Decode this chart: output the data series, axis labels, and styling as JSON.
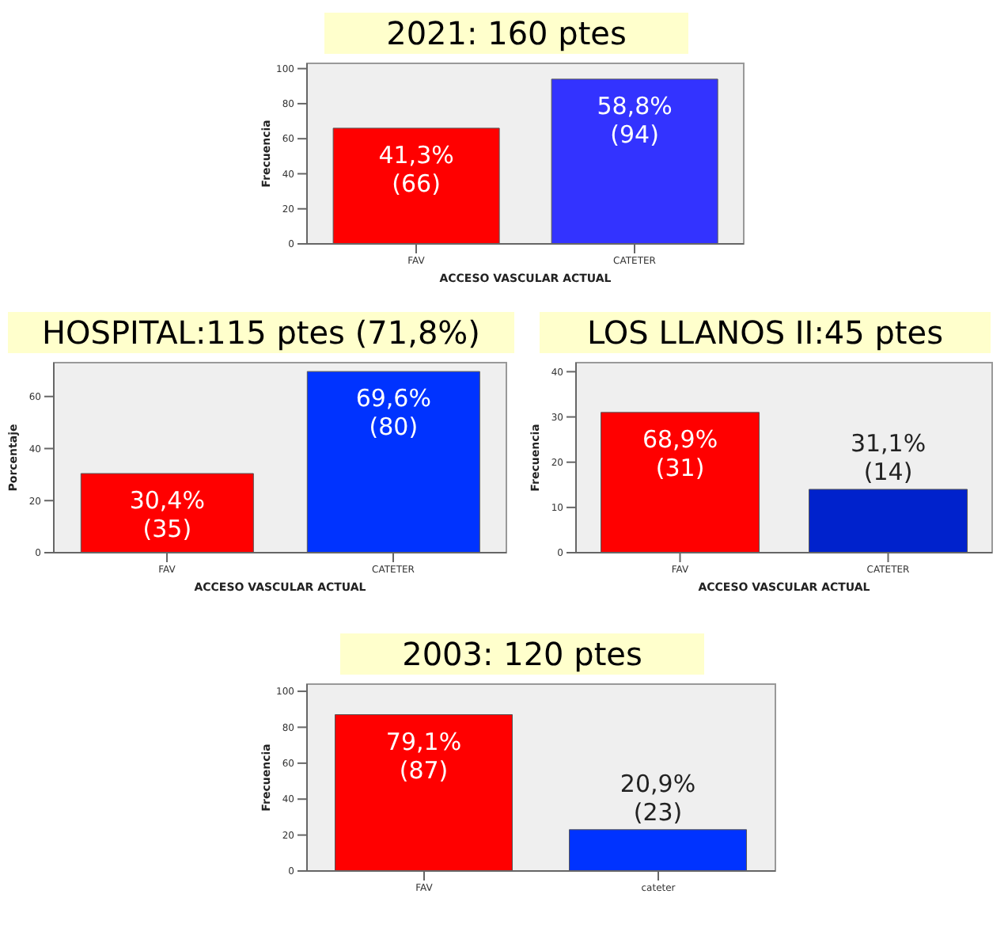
{
  "chart_data": [
    {
      "type": "bar",
      "title": "2021: 160 ptes",
      "xlabel": "ACCESO VASCULAR ACTUAL",
      "ylabel": "Frecuencia",
      "categories": [
        "FAV",
        "CATETER"
      ],
      "values": [
        66,
        94
      ],
      "colors": [
        "#ff0000",
        "#3333ff"
      ],
      "value_labels": [
        "41,3% (66)",
        "58,8% (94)"
      ],
      "ylim": [
        0,
        103
      ],
      "yticks": [
        0,
        20,
        40,
        60,
        80,
        100
      ]
    },
    {
      "type": "bar",
      "title": "HOSPITAL:115 ptes (71,8%)",
      "xlabel": "ACCESO VASCULAR ACTUAL",
      "ylabel": "Porcentaje",
      "categories": [
        "FAV",
        "CATETER"
      ],
      "values": [
        30.4,
        69.6
      ],
      "colors": [
        "#ff0000",
        "#0033ff"
      ],
      "value_labels": [
        "30,4% (35)",
        "69,6% (80)"
      ],
      "ylim": [
        0,
        73
      ],
      "yticks": [
        0,
        20,
        40,
        60
      ]
    },
    {
      "type": "bar",
      "title": "LOS LLANOS II:45 ptes",
      "xlabel": "ACCESO VASCULAR ACTUAL",
      "ylabel": "Frecuencia",
      "categories": [
        "FAV",
        "CATETER"
      ],
      "values": [
        31,
        14
      ],
      "colors": [
        "#ff0000",
        "#0022cc"
      ],
      "value_labels": [
        "68,9% (31)",
        "31,1% (14)"
      ],
      "ylim": [
        0,
        42
      ],
      "yticks": [
        0,
        10,
        20,
        30,
        40
      ]
    },
    {
      "type": "bar",
      "title": "2003: 120 ptes",
      "ylabel": "Frecuencia",
      "categories": [
        "FAV",
        "cateter"
      ],
      "values": [
        87,
        23
      ],
      "colors": [
        "#ff0000",
        "#0033ff"
      ],
      "value_labels": [
        "79,1% (87)",
        "20,9% (23)"
      ],
      "ylim": [
        0,
        104
      ],
      "yticks": [
        0,
        20,
        40,
        60,
        80,
        100
      ]
    }
  ]
}
